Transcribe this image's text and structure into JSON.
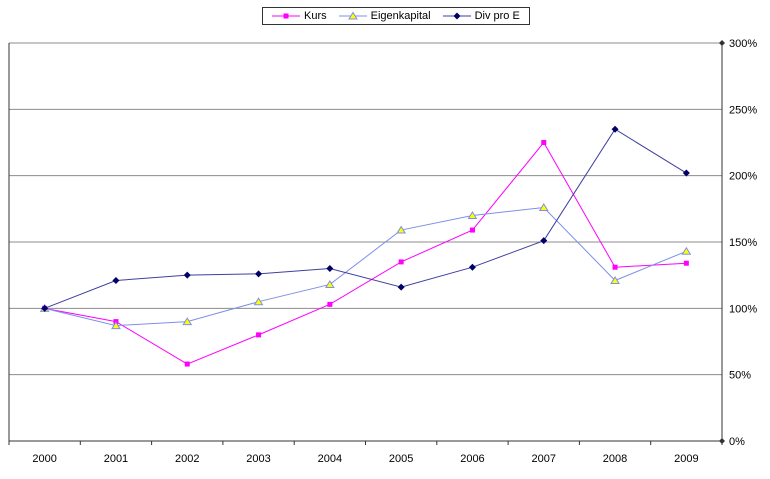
{
  "chart_data": {
    "type": "line",
    "x": [
      "2000",
      "2001",
      "2002",
      "2003",
      "2004",
      "2005",
      "2006",
      "2007",
      "2008",
      "2009"
    ],
    "series": [
      {
        "name": "Kurs",
        "color": "#FF00FF",
        "marker": "square",
        "marker_fill": "#FF00FF",
        "values": [
          100,
          90,
          58,
          80,
          103,
          135,
          159,
          225,
          131,
          134
        ]
      },
      {
        "name": "Eigenkapital",
        "color": "#7D90E6",
        "marker": "triangle",
        "marker_fill": "#FFFF00",
        "values": [
          100,
          87,
          90,
          105,
          118,
          159,
          170,
          176,
          121,
          143
        ]
      },
      {
        "name": "Div pro E",
        "color": "#3F3F9F",
        "marker": "diamond",
        "marker_fill": "#000066",
        "values": [
          100,
          121,
          125,
          126,
          130,
          116,
          131,
          151,
          235,
          202
        ]
      }
    ],
    "title": "",
    "xlabel": "",
    "ylabel": "",
    "ylim": [
      0,
      300
    ],
    "y_tick_step": 50,
    "y_tick_labels": [
      "0%",
      "50%",
      "100%",
      "150%",
      "200%",
      "250%",
      "300%"
    ],
    "y_axis_side": "right",
    "grid": true,
    "legend_position": "top-center",
    "styles": {
      "grid_color": "#8C8C8C",
      "axis_color": "#333333",
      "label_color": "#000000",
      "background": "#FFFFFF"
    }
  }
}
